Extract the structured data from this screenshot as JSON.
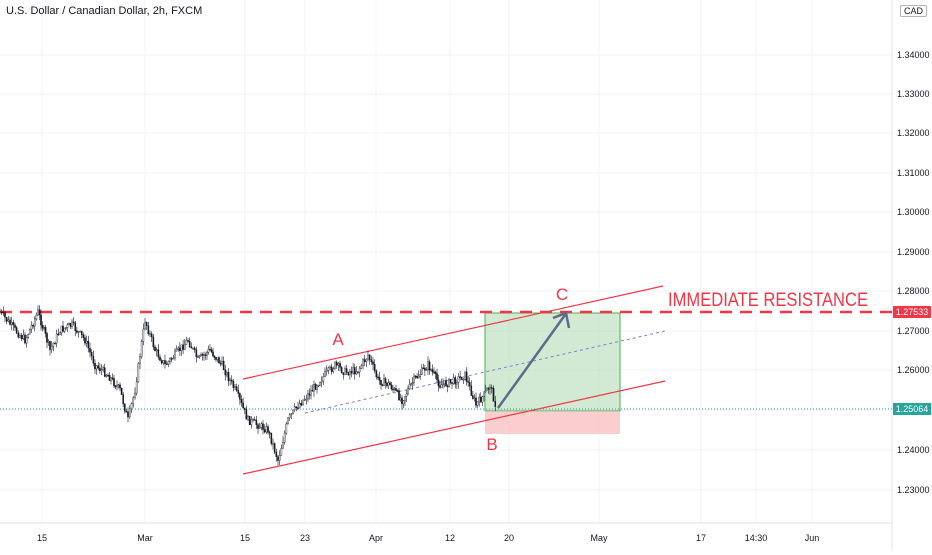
{
  "header": {
    "title": "U.S. Dollar / Canadian Dollar, 2h, FXCM",
    "currency": "CAD"
  },
  "price_axis": {
    "ticks": [
      "1.34000",
      "1.33000",
      "1.32000",
      "1.31000",
      "1.30000",
      "1.29000",
      "1.28000",
      "1.27000",
      "1.26000",
      "1.25000",
      "1.24000",
      "1.23000"
    ],
    "resistance_tag": "1.27533",
    "current_tag": "1.25064"
  },
  "time_axis": {
    "ticks": [
      "15",
      "Mar",
      "15",
      "23",
      "Apr",
      "12",
      "20",
      "May",
      "17",
      "14:30",
      "Jun"
    ]
  },
  "annotations": {
    "resistance_label": "IMMEDIATE RESISTANCE",
    "wave_a": "A",
    "wave_b": "B",
    "wave_c": "C"
  },
  "colors": {
    "bullish_zone": "#a5d6a7",
    "bearish_zone": "#f8b4b4",
    "channel": "#f23645",
    "resistance": "#f23645",
    "arrow": "#5d6b8a",
    "current_price": "#26a69a"
  }
}
